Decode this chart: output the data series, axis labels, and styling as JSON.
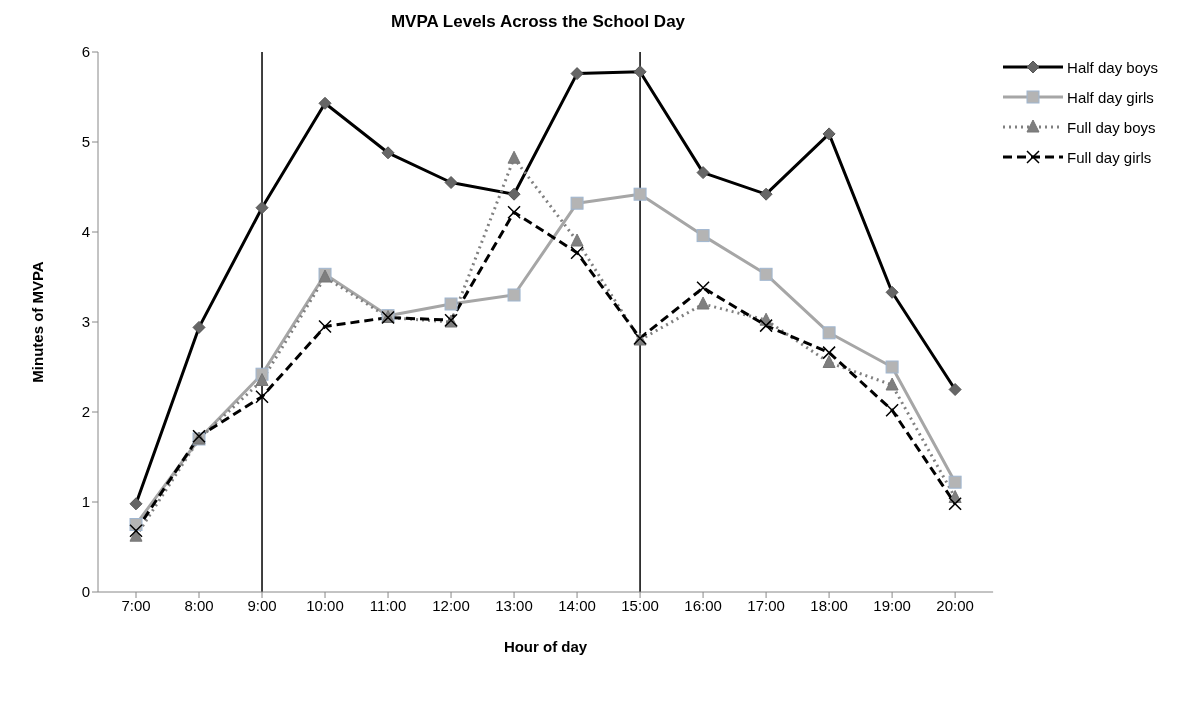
{
  "chart_data": {
    "type": "line",
    "title": "MVPA Levels Across the School Day",
    "xlabel": "Hour of day",
    "ylabel": "Minutes of MVPA",
    "categories": [
      "7:00",
      "8:00",
      "9:00",
      "10:00",
      "11:00",
      "12:00",
      "13:00",
      "14:00",
      "15:00",
      "16:00",
      "17:00",
      "18:00",
      "19:00",
      "20:00"
    ],
    "series": [
      {
        "name": "Half day boys",
        "color": "#000000",
        "marker": "diamond",
        "line_style": "solid",
        "values": [
          0.98,
          2.94,
          4.27,
          5.43,
          4.88,
          4.55,
          4.42,
          5.76,
          5.78,
          4.66,
          4.42,
          5.09,
          3.33,
          2.25
        ]
      },
      {
        "name": "Half day girls",
        "color": "#a6a6a6",
        "marker": "square",
        "line_style": "solid",
        "values": [
          0.75,
          1.7,
          2.42,
          3.53,
          3.07,
          3.2,
          3.3,
          4.32,
          4.42,
          3.96,
          3.53,
          2.88,
          2.5,
          1.22
        ]
      },
      {
        "name": "Full day boys",
        "color": "#808080",
        "marker": "triangle",
        "line_style": "dotted",
        "values": [
          0.62,
          1.7,
          2.35,
          3.5,
          3.05,
          3.0,
          4.82,
          3.9,
          2.8,
          3.2,
          3.02,
          2.55,
          2.3,
          1.05
        ]
      },
      {
        "name": "Full day girls",
        "color": "#000000",
        "marker": "cross",
        "line_style": "dashed",
        "values": [
          0.68,
          1.73,
          2.17,
          2.95,
          3.05,
          3.02,
          4.22,
          3.77,
          2.82,
          3.38,
          2.96,
          2.66,
          2.02,
          0.98
        ]
      }
    ],
    "ref_lines": [
      {
        "axis": "x",
        "value": "9:00",
        "color": "#000000"
      },
      {
        "axis": "x",
        "value": "15:00",
        "color": "#000000"
      }
    ],
    "ylim": [
      0,
      6
    ],
    "yticks": [
      0,
      1,
      2,
      3,
      4,
      5,
      6
    ],
    "grid": false,
    "legend": "top right"
  }
}
